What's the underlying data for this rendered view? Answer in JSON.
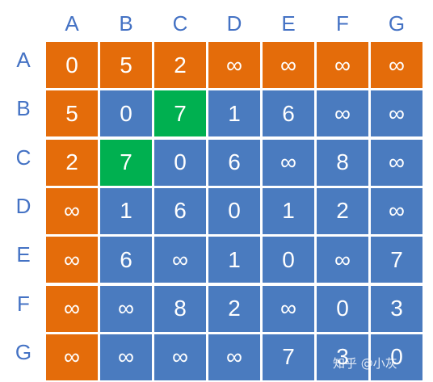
{
  "labels": [
    "A",
    "B",
    "C",
    "D",
    "E",
    "F",
    "G"
  ],
  "matrix": [
    [
      "0",
      "5",
      "2",
      "∞",
      "∞",
      "∞",
      "∞"
    ],
    [
      "5",
      "0",
      "7",
      "1",
      "6",
      "∞",
      "∞"
    ],
    [
      "2",
      "7",
      "0",
      "6",
      "∞",
      "8",
      "∞"
    ],
    [
      "∞",
      "1",
      "6",
      "0",
      "1",
      "2",
      "∞"
    ],
    [
      "∞",
      "6",
      "∞",
      "1",
      "0",
      "∞",
      "7"
    ],
    [
      "∞",
      "∞",
      "8",
      "2",
      "∞",
      "0",
      "3"
    ],
    [
      "∞",
      "∞",
      "∞",
      "∞",
      "7",
      "3",
      "0"
    ]
  ],
  "highlight": {
    "orange": [
      [
        0,
        0
      ],
      [
        0,
        1
      ],
      [
        0,
        2
      ],
      [
        0,
        3
      ],
      [
        0,
        4
      ],
      [
        0,
        5
      ],
      [
        0,
        6
      ],
      [
        1,
        0
      ],
      [
        2,
        0
      ],
      [
        3,
        0
      ],
      [
        4,
        0
      ],
      [
        5,
        0
      ],
      [
        6,
        0
      ]
    ],
    "green": [
      [
        1,
        2
      ],
      [
        2,
        1
      ]
    ]
  },
  "colors": {
    "blue": "#4a7bbf",
    "orange": "#e46c0a",
    "green": "#00b050",
    "label": "#4472c4"
  },
  "watermark": "知乎 @小灰"
}
